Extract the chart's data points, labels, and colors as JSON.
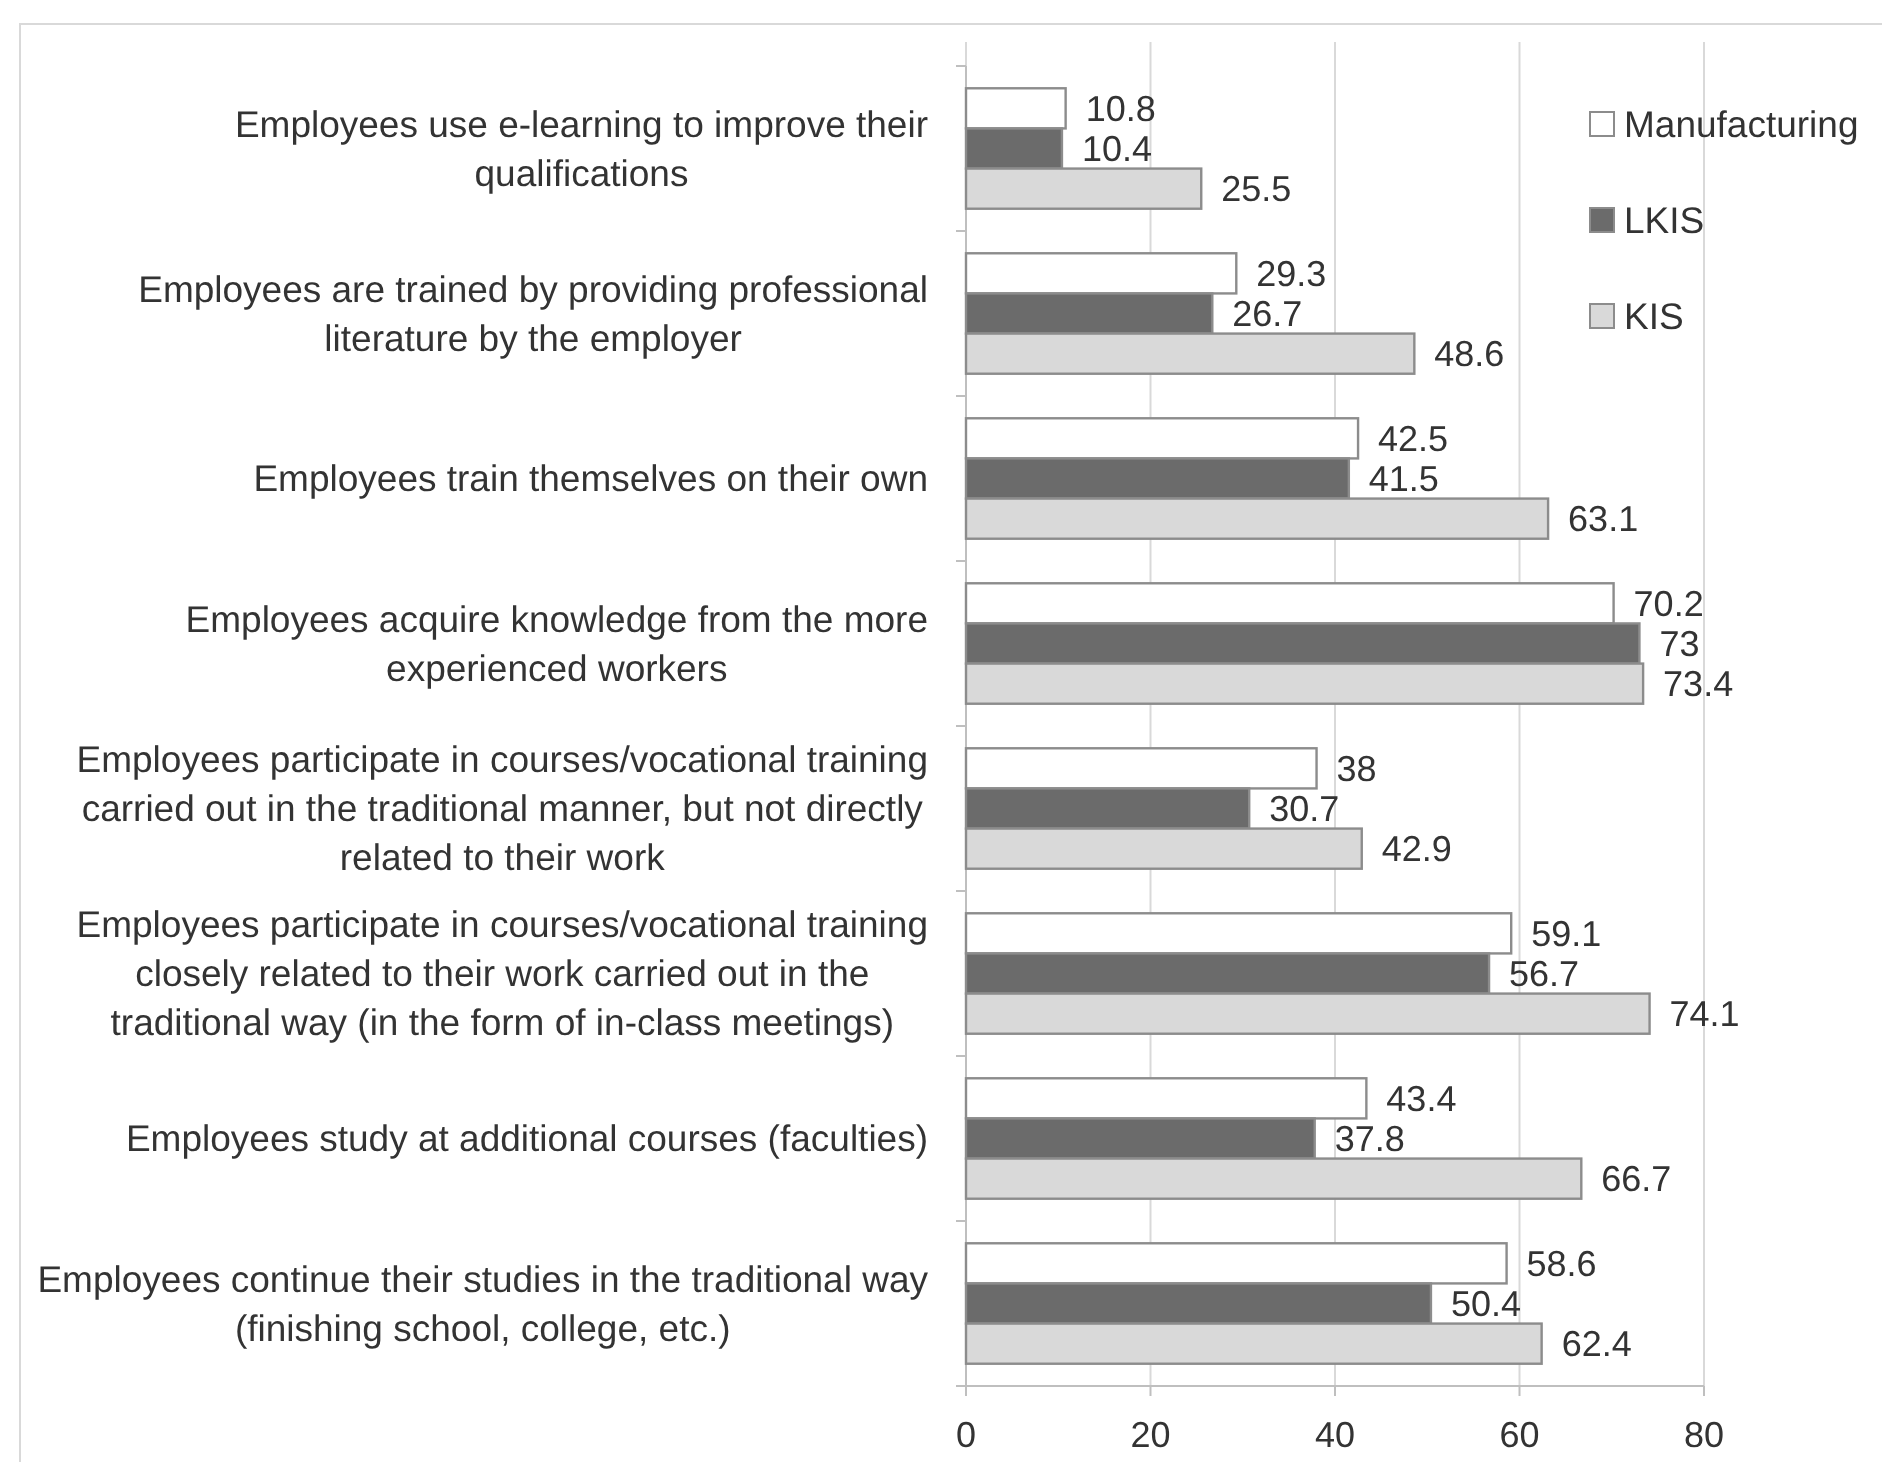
{
  "chart_data": {
    "type": "bar",
    "orientation": "horizontal",
    "categories": [
      "Employees use e-learning to improve their qualifications",
      "Employees are trained by providing professional literature by the employer",
      "Employees train themselves on their own",
      "Employees acquire knowledge from the more experienced workers",
      "Employees participate in courses/vocational training carried out in the traditional manner, but not directly related to their work",
      "Employees participate in courses/vocational training closely related to their work carried out in the traditional way (in the form of in-class meetings)",
      "Employees study at additional courses (faculties)",
      "Employees continue their studies in the traditional way (finishing school, college, etc.)"
    ],
    "series": [
      {
        "name": "Manufacturing",
        "color": "#ffffff",
        "values": [
          10.8,
          29.3,
          42.5,
          70.2,
          38,
          59.1,
          43.4,
          58.6
        ]
      },
      {
        "name": "LKIS",
        "color": "#6b6b6b",
        "values": [
          10.4,
          26.7,
          41.5,
          73,
          30.7,
          56.7,
          37.8,
          50.4
        ]
      },
      {
        "name": "KIS",
        "color": "#d9d9d9",
        "values": [
          25.5,
          48.6,
          63.1,
          73.4,
          42.9,
          74.1,
          66.7,
          62.4
        ]
      }
    ],
    "xlim": [
      0,
      80
    ],
    "xticks": [
      0,
      20,
      40,
      60,
      80
    ],
    "grid": "x",
    "legend": "top right",
    "data_labels": true
  }
}
